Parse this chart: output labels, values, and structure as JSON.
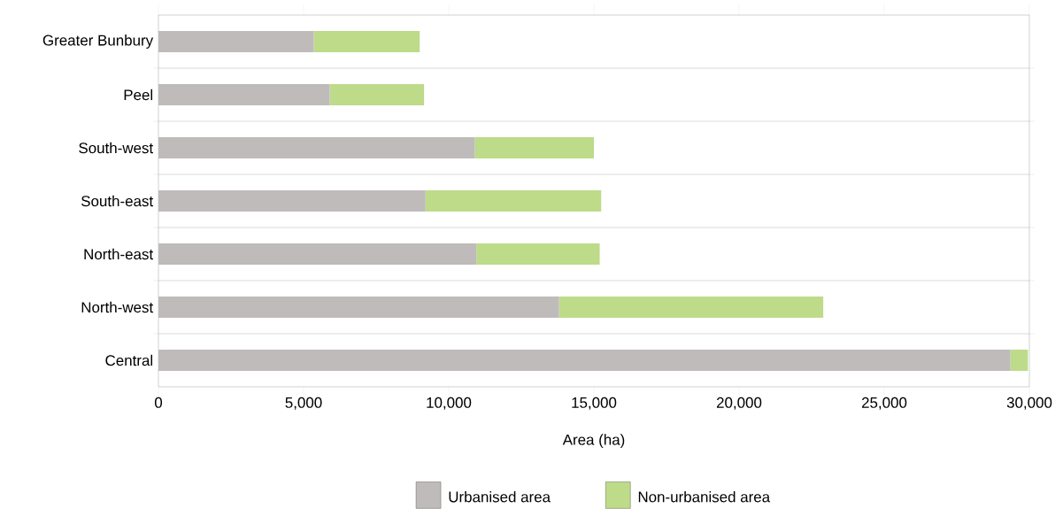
{
  "chart_data": {
    "type": "bar",
    "orientation": "horizontal",
    "stacked": true,
    "categories": [
      "Greater Bunbury",
      "Peel",
      "South-west",
      "South-east",
      "North-east",
      "North-west",
      "Central"
    ],
    "series": [
      {
        "name": "Urbanised area",
        "color": "#bfbbba",
        "values": [
          5350,
          5900,
          10900,
          9200,
          10950,
          13800,
          29350
        ]
      },
      {
        "name": "Non-urbanised area",
        "color": "#bddb89",
        "values": [
          3650,
          3250,
          4100,
          6050,
          4250,
          9100,
          600
        ]
      }
    ],
    "xlabel": "Area (ha)",
    "xlim": [
      0,
      30000
    ],
    "xticks": [
      0,
      {
        "value": 5000,
        "label": "5,000"
      },
      {
        "value": 10000,
        "label": "10,000"
      },
      {
        "value": 15000,
        "label": "15,000"
      },
      {
        "value": 20000,
        "label": "20,000"
      },
      {
        "value": 25000,
        "label": "25,000"
      },
      {
        "value": 30000,
        "label": "30,000"
      }
    ],
    "grid": "y",
    "legend": "bottom"
  }
}
